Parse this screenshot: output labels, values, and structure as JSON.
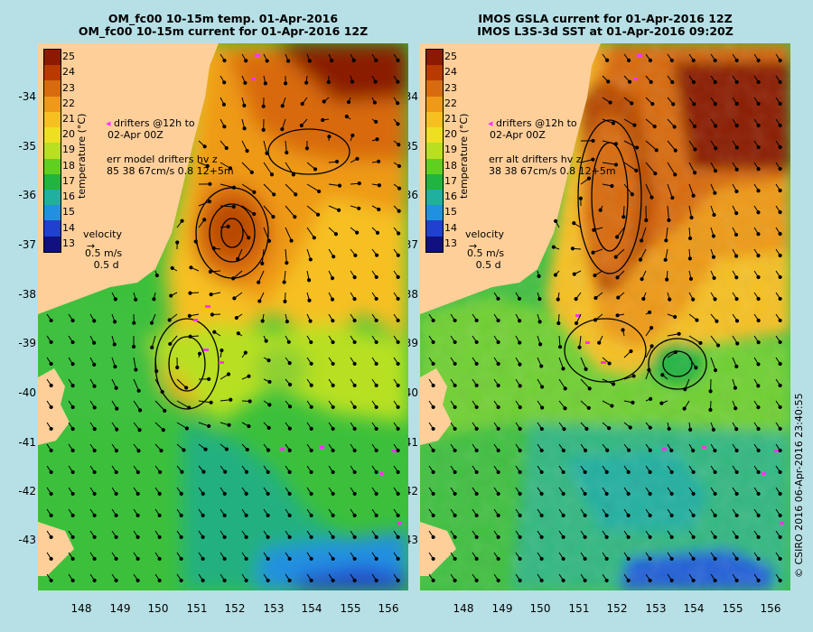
{
  "left_panel": {
    "title_line1": "OM_fc00 10-15m temp. 01-Apr-2016",
    "title_line2": "OM_fc00 10-15m current for 01-Apr-2016 12Z",
    "drifters_line1": "drifters @12h to",
    "drifters_line2": "02-Apr 00Z",
    "err_line1": "err model drifters hv z",
    "err_line2": "85 38 67cm/s 0.8 12+5m",
    "velocity_label": "velocity",
    "velocity_value": "0.5 m/s",
    "velocity_time": "0.5 d"
  },
  "right_panel": {
    "title_line1": "IMOS GSLA current for 01-Apr-2016 12Z",
    "title_line2": "IMOS L3S-3d SST at 01-Apr-2016 09:20Z",
    "drifters_line1": "drifters @12h to",
    "drifters_line2": "02-Apr 00Z",
    "err_line1": "err alt drifters hv z",
    "err_line2": "38 38 67cm/s 0.8 12+5m",
    "velocity_label": "velocity",
    "velocity_value": "0.5 m/s",
    "velocity_time": "0.5 d"
  },
  "colorbar": {
    "label": "temperature (°C)",
    "ticks": [
      "25",
      "24",
      "23",
      "22",
      "21",
      "20",
      "19",
      "18",
      "17",
      "16",
      "15",
      "14",
      "13"
    ],
    "colors": [
      "#8b1a00",
      "#b83a00",
      "#d86a10",
      "#ee9a18",
      "#f6c020",
      "#eee020",
      "#b8e020",
      "#60d020",
      "#20b440",
      "#20b0a0",
      "#2090e0",
      "#2040d0",
      "#101080"
    ]
  },
  "y_axis": {
    "ticks": [
      "-34",
      "-35",
      "-36",
      "-37",
      "-38",
      "-39",
      "-40",
      "-41",
      "-42",
      "-43"
    ]
  },
  "x_axis": {
    "ticks": [
      "148",
      "149",
      "150",
      "151",
      "152",
      "153",
      "154",
      "155",
      "156"
    ]
  },
  "credit": "© CSIRO 2016   06-Apr-2016 23:40:55",
  "colors": {
    "land": "#ffcf9a",
    "background": "#b7e0e6",
    "drifter": "#ff33ff"
  }
}
